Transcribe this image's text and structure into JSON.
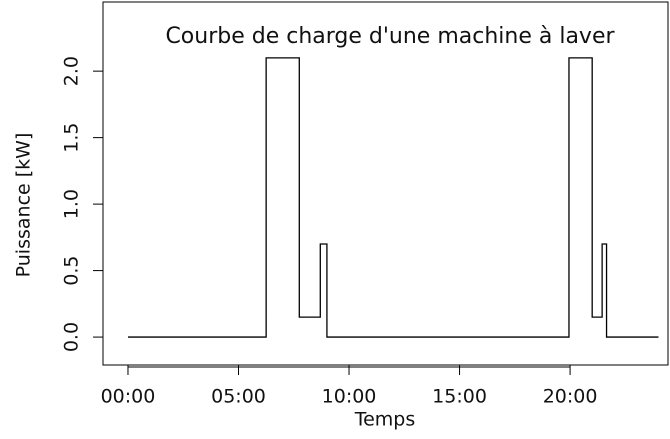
{
  "chart_data": {
    "type": "line",
    "title": "Courbe de charge d'une machine à laver",
    "xlabel": "Temps",
    "ylabel": "Puissance [kW]",
    "series": [
      {
        "color": "#000000",
        "x": [
          0,
          6.25,
          6.25,
          7.75,
          7.75,
          8.7,
          8.7,
          9,
          9,
          19.95,
          19.95,
          21,
          21,
          21.45,
          21.45,
          21.65,
          21.65,
          24
        ],
        "values": [
          0,
          0,
          2.1,
          2.1,
          0.15,
          0.15,
          0.7,
          0.7,
          0,
          0,
          2.1,
          2.1,
          0.15,
          0.15,
          0.7,
          0.7,
          0,
          0
        ]
      }
    ],
    "xlim": [
      -1.13,
      24.43
    ],
    "ylim": [
      -0.21,
      2.52
    ],
    "xticks": [
      {
        "value": 0,
        "label": "00:00"
      },
      {
        "value": 5,
        "label": "05:00"
      },
      {
        "value": 10,
        "label": "10:00"
      },
      {
        "value": 15,
        "label": "15:00"
      },
      {
        "value": 20,
        "label": "20:00"
      }
    ],
    "yticks": [
      {
        "value": 0,
        "label": "0.0"
      },
      {
        "value": 0.5,
        "label": "0.5"
      },
      {
        "value": 1,
        "label": "1.0"
      },
      {
        "value": 1.5,
        "label": "1.5"
      },
      {
        "value": 2,
        "label": "2.0"
      }
    ]
  }
}
